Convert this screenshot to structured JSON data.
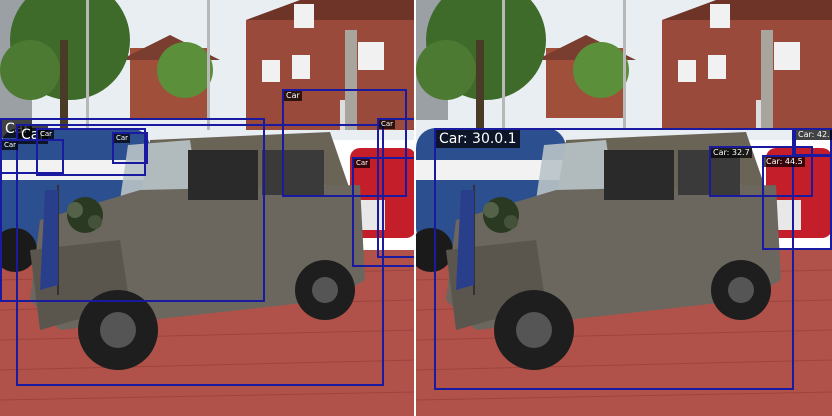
{
  "left_panel": {
    "detections": [
      {
        "label": "Car"
      },
      {
        "label": "Car"
      },
      {
        "label": "Car"
      },
      {
        "label": "Car"
      },
      {
        "label": "Car"
      },
      {
        "label": "Car"
      },
      {
        "label": "Car"
      },
      {
        "label": "Car"
      }
    ]
  },
  "right_panel": {
    "detections": [
      {
        "label": "Car: 30.0.1"
      },
      {
        "label": "Car: 32.7"
      },
      {
        "label": "Car: 44.5"
      },
      {
        "label": "Car: 42."
      }
    ]
  },
  "colors": {
    "box": "#1a1aa0",
    "label_bg": "#000000",
    "label_text": "#ffffff"
  }
}
